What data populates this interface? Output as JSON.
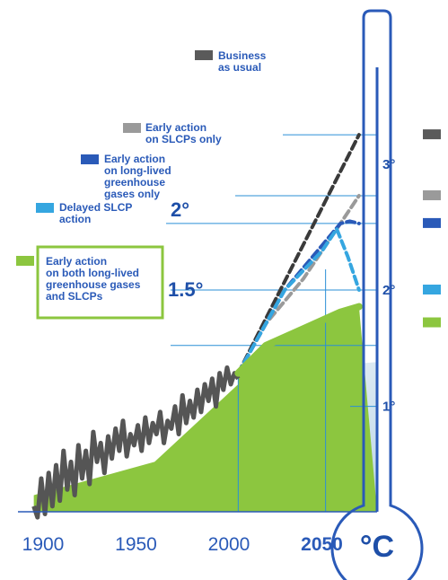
{
  "chart_data": {
    "type": "line",
    "x_ticks": [
      "1900",
      "1950",
      "2000",
      "2050"
    ],
    "y_ticks_thermometer": [
      "1°",
      "2°",
      "3°"
    ],
    "threshold_labels": [
      "1.5°",
      "2°"
    ],
    "unit": "°C",
    "xlim": [
      1900,
      2080
    ],
    "ylim": [
      0,
      3.7
    ],
    "observed": {
      "x": [
        1895,
        1897,
        1899,
        1901,
        1903,
        1905,
        1907,
        1909,
        1911,
        1913,
        1915,
        1917,
        1919,
        1921,
        1923,
        1925,
        1927,
        1929,
        1931,
        1933,
        1935,
        1937,
        1939,
        1941,
        1943,
        1945,
        1947,
        1949,
        1951,
        1953,
        1955,
        1957,
        1959,
        1961,
        1963,
        1965,
        1967,
        1969,
        1971,
        1973,
        1975,
        1977,
        1979,
        1981,
        1983,
        1985,
        1987,
        1989,
        1991,
        1993,
        1995,
        1997,
        1999,
        2001,
        2003,
        2005
      ],
      "y": [
        0.05,
        -0.05,
        0.3,
        -0.02,
        0.35,
        0.05,
        0.42,
        0.1,
        0.55,
        0.2,
        0.45,
        0.15,
        0.6,
        0.3,
        0.55,
        0.25,
        0.72,
        0.45,
        0.62,
        0.35,
        0.68,
        0.48,
        0.75,
        0.55,
        0.82,
        0.5,
        0.7,
        0.6,
        0.78,
        0.55,
        0.85,
        0.62,
        0.8,
        0.7,
        0.9,
        0.62,
        0.82,
        0.75,
        0.95,
        0.7,
        1.05,
        0.8,
        1.0,
        0.85,
        1.1,
        0.9,
        1.15,
        1.0,
        1.2,
        0.95,
        1.25,
        1.1,
        1.3,
        1.15,
        1.25,
        1.2
      ]
    },
    "series": [
      {
        "name": "Business as usual",
        "color": "#3a3a3a",
        "x": [
          2005,
          2070
        ],
        "y": [
          1.25,
          3.4
        ]
      },
      {
        "name": "Early action on SLCPs only",
        "color": "#9a9a9a",
        "x": [
          2005,
          2020,
          2040,
          2060,
          2070
        ],
        "y": [
          1.25,
          1.7,
          2.1,
          2.6,
          2.85
        ]
      },
      {
        "name": "Early action on long-lived greenhouse gases only",
        "color": "#2a5ab8",
        "x": [
          2005,
          2030,
          2050,
          2060,
          2065,
          2070
        ],
        "y": [
          1.25,
          2.0,
          2.4,
          2.6,
          2.62,
          2.6
        ]
      },
      {
        "name": "Delayed SLCP action",
        "color": "#35a6e0",
        "x": [
          2005,
          2030,
          2050,
          2058,
          2064,
          2070
        ],
        "y": [
          1.25,
          2.0,
          2.35,
          2.55,
          2.3,
          2.0
        ]
      },
      {
        "name": "Early action on both long-lived greenhouse gases and SLCPs",
        "color": "#8cc63f",
        "x": [
          2005,
          2020,
          2040,
          2060,
          2070
        ],
        "y": [
          1.25,
          1.5,
          1.65,
          1.8,
          1.85
        ]
      }
    ],
    "legend": [
      {
        "label": "Business as usual",
        "color": "#5a5a5a"
      },
      {
        "label": "Early action on SLCPs only",
        "color": "#9a9a9a"
      },
      {
        "label": "Early action on long-lived greenhouse gases only",
        "color": "#2a5ab8"
      },
      {
        "label": "Delayed SLCP action",
        "color": "#35a6e0"
      },
      {
        "label": "Early action on both long-lived greenhouse gases and SLCPs",
        "color": "#8cc63f"
      }
    ],
    "colors": {
      "axis": "#2a5ab8",
      "thermometer": "#2a5ab8",
      "green_fill": "#8cc63f",
      "observed": "#555555"
    }
  },
  "labels": {
    "bau": [
      "Business",
      "as usual"
    ],
    "slcp_only": [
      "Early action",
      "on SLCPs only"
    ],
    "long_lived": [
      "Early action",
      "on long-lived",
      "greenhouse",
      "gases only"
    ],
    "delayed": [
      "Delayed SLCP",
      "action"
    ],
    "both": [
      "Early action",
      "on both long-lived",
      "greenhouse gases",
      "and SLCPs"
    ]
  }
}
